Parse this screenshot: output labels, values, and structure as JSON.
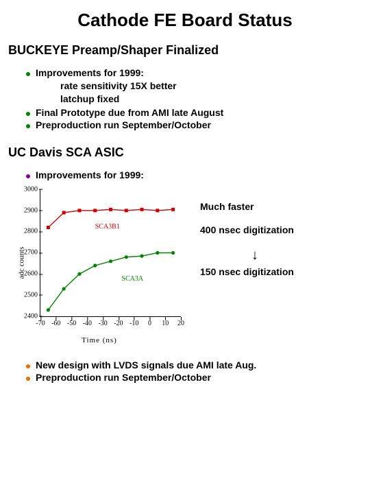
{
  "title": "Cathode FE Board Status",
  "sec1": {
    "heading": "BUCKEYE Preamp/Shaper Finalized",
    "b1": "Improvements for 1999:",
    "b1_sub1": "rate sensitivity 15X better",
    "b1_sub2": "latchup fixed",
    "b2": "Final Prototype due from AMI late August",
    "b3": "Preproduction run September/October"
  },
  "sec2": {
    "heading": "UC Davis SCA ASIC",
    "b1": "Improvements for 1999:",
    "note1": "Much  faster",
    "note2": "400 nsec digitization",
    "arrow": "↓",
    "note3": "150 nsec digitization",
    "foot1": "New design with LVDS signals due AMI late Aug.",
    "foot2": "Preproduction run September/October"
  },
  "chart": {
    "xlabel": "Time (ns)",
    "ylabel": "adc counts",
    "xlim": [
      -70,
      20
    ],
    "ylim": [
      2400,
      3000
    ],
    "xticks": [
      -70,
      -60,
      -50,
      -40,
      -30,
      -20,
      -10,
      0,
      10,
      20
    ],
    "yticks": [
      2400,
      2500,
      2600,
      2700,
      2800,
      2900,
      3000
    ],
    "grid_color": "#ffffff",
    "background_color": "#ffffff",
    "series": [
      {
        "name": "SCA3B1",
        "color": "#cc0000",
        "marker": "square",
        "label_pos_ns": -35,
        "label_pos_adc": 2840,
        "points": [
          {
            "x": -65,
            "y": 2820
          },
          {
            "x": -55,
            "y": 2890
          },
          {
            "x": -45,
            "y": 2900
          },
          {
            "x": -35,
            "y": 2900
          },
          {
            "x": -25,
            "y": 2905
          },
          {
            "x": -15,
            "y": 2900
          },
          {
            "x": -5,
            "y": 2905
          },
          {
            "x": 5,
            "y": 2900
          },
          {
            "x": 15,
            "y": 2905
          }
        ]
      },
      {
        "name": "SCA3A",
        "color": "#008000",
        "marker": "circle",
        "label_pos_ns": -18,
        "label_pos_adc": 2595,
        "points": [
          {
            "x": -65,
            "y": 2430
          },
          {
            "x": -55,
            "y": 2530
          },
          {
            "x": -45,
            "y": 2600
          },
          {
            "x": -35,
            "y": 2640
          },
          {
            "x": -25,
            "y": 2660
          },
          {
            "x": -15,
            "y": 2680
          },
          {
            "x": -5,
            "y": 2685
          },
          {
            "x": 5,
            "y": 2700
          },
          {
            "x": 15,
            "y": 2700
          }
        ]
      }
    ]
  },
  "colors": {
    "bullet_green": "#008000",
    "bullet_purple": "#8000a0",
    "bullet_orange": "#e07000"
  }
}
